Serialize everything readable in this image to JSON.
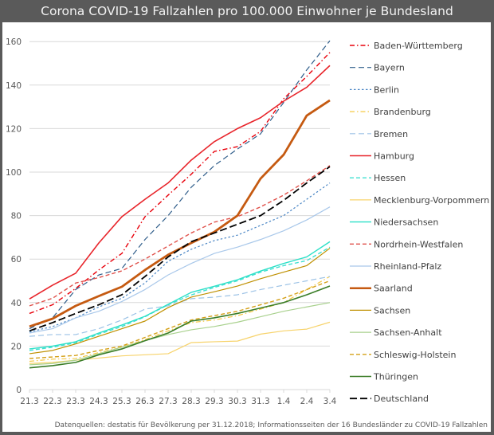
{
  "page": {
    "title": "Corona COVID-19 Fallzahlen pro 100.000 Einwohner je Bundesland",
    "source": "Datenquellen: destatis für Bevölkerung per 31.12.2018; Informationsseiten der 16 Bundesländer zu COVID-19 Fallzahlen"
  },
  "chart_data": {
    "type": "line",
    "title": "Corona COVID-19 Fallzahlen pro 100.000 Einwohner je Bundesland",
    "xlabel": "",
    "ylabel": "",
    "categories": [
      "21.3",
      "22.3",
      "23.3",
      "24.3",
      "25.3",
      "26.3",
      "27.3",
      "28.3",
      "29.3",
      "30.3",
      "31.3",
      "1.4",
      "2.4",
      "3.4"
    ],
    "ylim": [
      0,
      160
    ],
    "yticks": [
      0,
      20,
      40,
      60,
      80,
      100,
      120,
      140,
      160
    ],
    "grid": true,
    "legend_position": "right",
    "series": [
      {
        "name": "Baden-Württemberg",
        "color": "#e8000b",
        "dash": "dashdot",
        "width": 1.4,
        "values": [
          35,
          39,
          46.5,
          55,
          62.6,
          79.5,
          89.4,
          99,
          109.5,
          111.7,
          118.7,
          133.7,
          144,
          155
        ]
      },
      {
        "name": "Bayern",
        "color": "#2f5d8a",
        "dash": "longdash",
        "width": 1.2,
        "values": [
          28,
          33,
          46,
          52.7,
          55.7,
          69,
          80,
          93,
          103,
          110.6,
          117.6,
          132,
          147,
          160.4
        ]
      },
      {
        "name": "Berlin",
        "color": "#4a86c5",
        "dash": "dot",
        "width": 1.2,
        "values": [
          26.5,
          29,
          33,
          38,
          42,
          49,
          59,
          64.5,
          68.5,
          71,
          75.5,
          80,
          87.5,
          95
        ]
      },
      {
        "name": "Brandenburg",
        "color": "#f5c842",
        "dash": "dashdot",
        "width": 1.2,
        "values": [
          13,
          14,
          14.3,
          17,
          19.5,
          23,
          27,
          30.8,
          32,
          34,
          37,
          40,
          46,
          52
        ]
      },
      {
        "name": "Bremen",
        "color": "#9dc3e6",
        "dash": "longdash",
        "width": 1.2,
        "values": [
          24.5,
          25.3,
          25.3,
          28,
          32,
          37,
          38.5,
          41.8,
          42.5,
          43.6,
          46,
          48,
          50,
          52
        ]
      },
      {
        "name": "Hamburg",
        "color": "#e8242a",
        "dash": "solid",
        "width": 1.6,
        "values": [
          41.7,
          48,
          53.5,
          67.4,
          79.5,
          87.5,
          95,
          105.5,
          114,
          120,
          125,
          132.6,
          139,
          149
        ]
      },
      {
        "name": "Hessen",
        "color": "#3fe0d0",
        "dash": "dash",
        "width": 1.4,
        "values": [
          18,
          19.5,
          21.5,
          25.5,
          29,
          33.5,
          39,
          43.5,
          47,
          50,
          54,
          57,
          59.3,
          65.5
        ]
      },
      {
        "name": "Mecklenburg-Vorpommern",
        "color": "#f7d36b",
        "dash": "solid",
        "width": 1.2,
        "values": [
          12,
          12.5,
          13.5,
          14.5,
          15.5,
          16,
          16.5,
          21.6,
          22,
          22.3,
          25.5,
          27,
          27.8,
          31
        ]
      },
      {
        "name": "Niedersachsen",
        "color": "#2de0c8",
        "dash": "solid",
        "width": 1.4,
        "values": [
          18.7,
          20,
          22,
          26,
          29.7,
          33.7,
          39.2,
          44.7,
          47.5,
          50.5,
          54.5,
          58,
          61,
          68
        ]
      },
      {
        "name": "Nordrhein-Westfalen",
        "color": "#e0504a",
        "dash": "dash",
        "width": 1.4,
        "values": [
          38.5,
          42,
          49,
          51.5,
          54.6,
          60,
          66,
          72,
          77,
          79.5,
          84,
          89.4,
          96,
          103
        ]
      },
      {
        "name": "Rheinland-Pfalz",
        "color": "#a9c8ea",
        "dash": "solid",
        "width": 1.2,
        "values": [
          26,
          28,
          33,
          36,
          40.5,
          46,
          52.7,
          58,
          62.6,
          65.5,
          69,
          73,
          78,
          84
        ]
      },
      {
        "name": "Saarland",
        "color": "#c55a11",
        "dash": "solid",
        "width": 2.8,
        "values": [
          29,
          32.6,
          38.5,
          43,
          47.3,
          55,
          62,
          67.4,
          72.5,
          80,
          97,
          108,
          126,
          133
        ]
      },
      {
        "name": "Sachsen",
        "color": "#bf9000",
        "dash": "solid",
        "width": 1.2,
        "values": [
          16.5,
          18,
          21,
          24.5,
          28,
          31.5,
          37.7,
          42.5,
          45,
          47.6,
          51,
          54,
          57,
          65
        ]
      },
      {
        "name": "Sachsen-Anhalt",
        "color": "#a9d18e",
        "dash": "solid",
        "width": 1.2,
        "values": [
          11.4,
          12,
          13.5,
          16.5,
          19.5,
          22.5,
          25.3,
          27.5,
          29,
          31,
          33.5,
          36,
          38,
          40
        ]
      },
      {
        "name": "Schleswig-Holstein",
        "color": "#d4a017",
        "dash": "dash",
        "width": 1.4,
        "values": [
          14.3,
          15,
          15.7,
          18,
          20,
          24,
          28,
          32,
          34,
          36,
          39,
          42,
          46,
          50
        ]
      },
      {
        "name": "Thüringen",
        "color": "#3a7d27",
        "dash": "solid",
        "width": 1.6,
        "values": [
          10,
          11,
          12.5,
          16,
          18.7,
          22.5,
          26,
          31.5,
          33,
          35,
          37.5,
          40,
          43.6,
          47.6
        ]
      },
      {
        "name": "Deutschland",
        "color": "#000000",
        "dash": "bigdash",
        "width": 1.8,
        "values": [
          27,
          30.8,
          35,
          39,
          43.6,
          52,
          61,
          68,
          72,
          76,
          80,
          87,
          95,
          102.5
        ]
      }
    ]
  }
}
